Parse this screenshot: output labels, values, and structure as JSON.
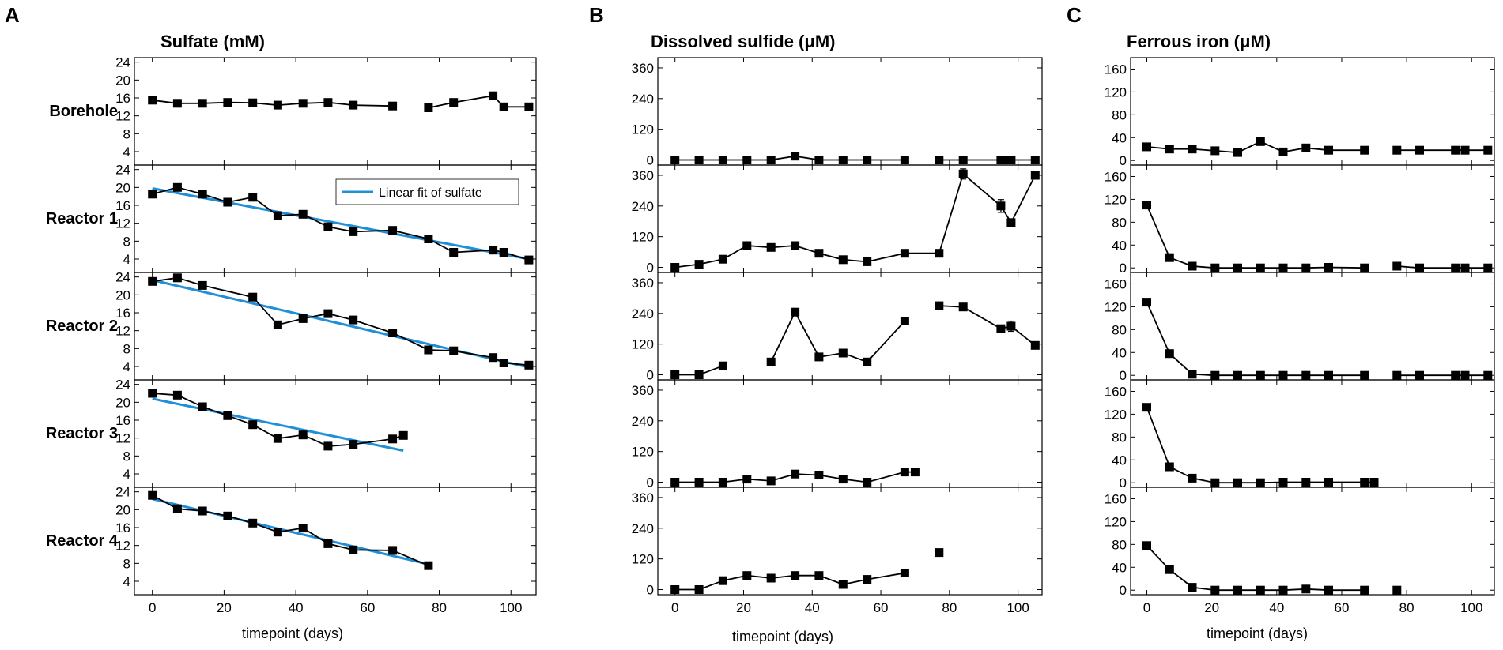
{
  "panel_letters": [
    "A",
    "B",
    "C"
  ],
  "legend": {
    "fit_label": "Linear fit of sulfate"
  },
  "series_colors": {
    "data": "#000000",
    "fit": "#1f8fd8"
  },
  "row_labels": [
    "Borehole",
    "Reactor 1",
    "Reactor 2",
    "Reactor 3",
    "Reactor 4"
  ],
  "chart_data": [
    {
      "type": "line",
      "title": "Sulfate (mM)",
      "xlabel": "timepoint (days)",
      "xlim": [
        -5,
        107
      ],
      "xticks": [
        0,
        20,
        40,
        60,
        80,
        100
      ],
      "ylim": [
        1,
        25
      ],
      "yticks": [
        4,
        8,
        12,
        16,
        20,
        24
      ],
      "subplots": [
        {
          "row": "Borehole",
          "x": [
            0,
            7,
            14,
            21,
            28,
            35,
            42,
            49,
            56,
            67,
            77,
            84,
            95,
            98,
            105
          ],
          "y": [
            15.5,
            14.8,
            14.8,
            15,
            14.9,
            14.4,
            14.8,
            15,
            14.4,
            14.2,
            13.8,
            15,
            16.5,
            14,
            14
          ],
          "breaks": [
            10
          ]
        },
        {
          "row": "Reactor 1",
          "x": [
            0,
            7,
            14,
            21,
            28,
            35,
            42,
            49,
            56,
            67,
            77,
            84,
            95,
            98,
            105
          ],
          "y": [
            18.5,
            20,
            18.5,
            16.7,
            17.8,
            13.7,
            14,
            11.2,
            10.1,
            10.4,
            8.5,
            5.5,
            6,
            5.5,
            3.8
          ],
          "breaks": [],
          "fit": {
            "x": [
              0,
              105
            ],
            "y": [
              19.8,
              4.0
            ]
          }
        },
        {
          "row": "Reactor 2",
          "x": [
            0,
            7,
            14,
            28,
            35,
            42,
            49,
            56,
            67,
            77,
            84,
            95,
            98,
            105
          ],
          "y": [
            23,
            23.8,
            22.1,
            19.5,
            13.3,
            14.7,
            15.8,
            14.4,
            11.5,
            7.7,
            7.5,
            6,
            4.8,
            4.3
          ],
          "breaks": [],
          "fit": {
            "x": [
              0,
              105
            ],
            "y": [
              23.3,
              3.8
            ]
          }
        },
        {
          "row": "Reactor 3",
          "x": [
            0,
            7,
            14,
            21,
            28,
            35,
            42,
            49,
            56,
            67,
            70
          ],
          "y": [
            22,
            21.6,
            19,
            17,
            15,
            11.9,
            12.7,
            10.2,
            10.6,
            11.8,
            12.6
          ],
          "breaks": [],
          "fit": {
            "x": [
              0,
              70
            ],
            "y": [
              20.8,
              9.2
            ]
          }
        },
        {
          "row": "Reactor 4",
          "x": [
            0,
            7,
            14,
            21,
            28,
            35,
            42,
            49,
            56,
            67,
            77
          ],
          "y": [
            23.2,
            20.2,
            19.7,
            18.6,
            17,
            15,
            15.9,
            12.4,
            11,
            10.9,
            7.5
          ],
          "breaks": [],
          "fit": {
            "x": [
              0,
              77
            ],
            "y": [
              22.4,
              7.8
            ]
          }
        }
      ]
    },
    {
      "type": "line",
      "title": "Dissolved sulfide (μM)",
      "xlabel": "timepoint (days)",
      "xlim": [
        -5,
        107
      ],
      "xticks": [
        0,
        20,
        40,
        60,
        80,
        100
      ],
      "ylim": [
        -20,
        400
      ],
      "yticks": [
        0,
        120,
        240,
        360
      ],
      "subplots": [
        {
          "row": "Borehole",
          "x": [
            0,
            7,
            14,
            21,
            28,
            35,
            42,
            49,
            56,
            67,
            77,
            84,
            95,
            97,
            98,
            105
          ],
          "y": [
            0,
            0,
            0,
            0,
            0,
            15,
            0,
            0,
            0,
            0,
            0,
            0,
            0,
            0,
            0,
            0
          ],
          "breaks": [
            10
          ]
        },
        {
          "row": "Reactor 1",
          "x": [
            0,
            7,
            14,
            21,
            28,
            35,
            42,
            49,
            56,
            67,
            77,
            84,
            95,
            98,
            105
          ],
          "y": [
            0,
            12,
            32,
            85,
            78,
            85,
            55,
            30,
            22,
            55,
            55,
            365,
            240,
            175,
            360
          ],
          "breaks": [],
          "err": [
            0,
            0,
            0,
            0,
            0,
            0,
            0,
            0,
            0,
            0,
            0,
            20,
            25,
            15,
            8
          ]
        },
        {
          "row": "Reactor 2",
          "x": [
            0,
            7,
            14,
            28,
            35,
            42,
            49,
            56,
            67,
            77,
            84,
            95,
            98,
            105
          ],
          "y": [
            0,
            0,
            35,
            50,
            245,
            70,
            85,
            50,
            210,
            270,
            265,
            180,
            190,
            115
          ],
          "breaks": [
            3,
            9
          ],
          "err": [
            0,
            0,
            0,
            0,
            0,
            0,
            0,
            0,
            0,
            0,
            0,
            0,
            20,
            0
          ]
        },
        {
          "row": "Reactor 3",
          "x": [
            0,
            7,
            14,
            21,
            28,
            35,
            42,
            49,
            56,
            67,
            70
          ],
          "y": [
            0,
            0,
            0,
            12,
            5,
            32,
            28,
            12,
            0,
            40,
            40
          ],
          "breaks": []
        },
        {
          "row": "Reactor 4",
          "x": [
            0,
            7,
            14,
            21,
            28,
            35,
            42,
            49,
            56,
            67,
            77
          ],
          "y": [
            0,
            0,
            35,
            55,
            45,
            55,
            55,
            20,
            40,
            65,
            145
          ],
          "breaks": [
            10
          ]
        }
      ]
    },
    {
      "type": "line",
      "title": "Ferrous iron (μM)",
      "xlabel": "timepoint (days)",
      "xlim": [
        -5,
        107
      ],
      "xticks": [
        0,
        20,
        40,
        60,
        80,
        100
      ],
      "ylim": [
        -8,
        180
      ],
      "yticks": [
        0,
        40,
        80,
        120,
        160
      ],
      "subplots": [
        {
          "row": "Borehole",
          "x": [
            0,
            7,
            14,
            21,
            28,
            35,
            42,
            49,
            56,
            67,
            77,
            84,
            95,
            98,
            105
          ],
          "y": [
            24,
            20,
            20,
            17,
            14,
            33,
            15,
            22,
            18,
            18,
            18,
            18,
            18,
            18,
            18
          ],
          "breaks": [
            10
          ]
        },
        {
          "row": "Reactor 1",
          "x": [
            0,
            7,
            14,
            21,
            28,
            35,
            42,
            49,
            56,
            67,
            77,
            84,
            95,
            98,
            105
          ],
          "y": [
            110,
            18,
            3,
            0,
            0,
            0,
            0,
            0,
            1,
            0,
            3,
            0,
            0,
            0,
            0
          ],
          "breaks": [
            10
          ]
        },
        {
          "row": "Reactor 2",
          "x": [
            0,
            7,
            14,
            21,
            28,
            35,
            42,
            49,
            56,
            67,
            77,
            84,
            95,
            98,
            105
          ],
          "y": [
            128,
            38,
            2,
            0,
            0,
            0,
            0,
            0,
            0,
            0,
            0,
            0,
            0,
            0,
            0
          ],
          "breaks": [
            10
          ]
        },
        {
          "row": "Reactor 3",
          "x": [
            0,
            7,
            14,
            21,
            28,
            35,
            42,
            49,
            56,
            67,
            70
          ],
          "y": [
            132,
            28,
            8,
            0,
            0,
            0,
            1,
            1,
            1,
            1,
            1
          ],
          "breaks": []
        },
        {
          "row": "Reactor 4",
          "x": [
            0,
            7,
            14,
            21,
            28,
            35,
            42,
            49,
            56,
            67,
            77
          ],
          "y": [
            78,
            36,
            5,
            0,
            0,
            0,
            0,
            2,
            0,
            0,
            0
          ],
          "breaks": [
            10
          ]
        }
      ]
    }
  ]
}
